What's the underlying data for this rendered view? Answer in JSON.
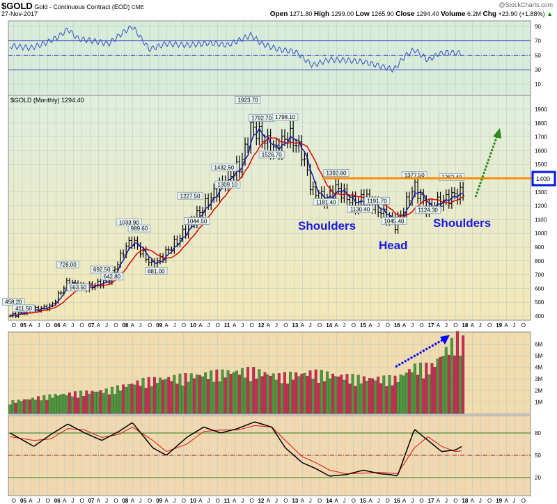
{
  "header": {
    "symbol": "$GOLD",
    "name": "Gold - Continuous Contract (EOD)",
    "exchange": "CME",
    "date": "27-Nov-2017",
    "brand": "@StockCharts.com",
    "open_label": "Open",
    "open": "1271.80",
    "high_label": "High",
    "high": "1299.00",
    "low_label": "Low",
    "low": "1265.90",
    "close_label": "Close",
    "close": "1294.40",
    "volume_label": "Volume",
    "volume": "6.2M",
    "chg_label": "Chg",
    "chg": "+23.90 (+1.88%)"
  },
  "colors": {
    "price_bg_top": "#dfeee0",
    "price_bg_bottom": "#f3e8b8",
    "rsi_bg": "#d8ecdc",
    "vol_bg": "#f0dcae",
    "stoch_bg": "#f0d8b0",
    "ma_fast": "#1a1aa0",
    "ma_slow": "#e00000",
    "resistance": "#ff8c00",
    "arrow": "#2a8a1a",
    "vol_arrow": "#0000ff",
    "up": "#4a9a3a",
    "down": "#d02850"
  },
  "chart_data": [
    {
      "type": "line",
      "title": "RSI",
      "yticks": [
        90,
        70,
        50,
        30,
        10
      ],
      "ylim": [
        0,
        100
      ],
      "x": [
        2004.6,
        2005.2,
        2005.6,
        2006.0,
        2006.3,
        2006.6,
        2007.0,
        2007.5,
        2008.0,
        2008.2,
        2008.7,
        2009.2,
        2009.8,
        2010.5,
        2011.0,
        2011.7,
        2012.0,
        2012.5,
        2013.0,
        2013.5,
        2014.0,
        2014.5,
        2015.0,
        2015.5,
        2015.9,
        2016.2,
        2016.5,
        2016.9,
        2017.2,
        2017.5,
        2017.9
      ],
      "values": [
        63,
        60,
        66,
        75,
        86,
        73,
        70,
        66,
        84,
        90,
        58,
        66,
        64,
        67,
        64,
        78,
        66,
        58,
        55,
        36,
        44,
        43,
        41,
        35,
        30,
        48,
        58,
        43,
        52,
        54,
        53
      ]
    },
    {
      "type": "bar",
      "title": "$GOLD (Monthly)",
      "last": "1294.40",
      "ylim": [
        300,
        1950
      ],
      "yticks": [
        1900,
        1800,
        1700,
        1600,
        1500,
        1400,
        1300,
        1200,
        1100,
        1000,
        900,
        800,
        700,
        600,
        500,
        400
      ],
      "anchors_x": [
        2004.6,
        2005.0,
        2005.8,
        2006.3,
        2006.8,
        2007.5,
        2008.0,
        2008.2,
        2008.8,
        2009.5,
        2010.0,
        2010.9,
        2011.4,
        2011.7,
        2012.0,
        2012.4,
        2012.8,
        2013.2,
        2013.5,
        2013.9,
        2014.2,
        2014.8,
        2015.0,
        2015.3,
        2015.8,
        2015.95,
        2016.5,
        2016.9,
        2017.0,
        2017.7,
        2017.9
      ],
      "anchors_y": [
        400,
        430,
        470,
        650,
        600,
        660,
        900,
        950,
        760,
        940,
        1100,
        1380,
        1500,
        1780,
        1700,
        1600,
        1720,
        1580,
        1300,
        1240,
        1330,
        1200,
        1280,
        1200,
        1100,
        1060,
        1340,
        1170,
        1200,
        1280,
        1294
      ],
      "labels": [
        {
          "t": "458.20",
          "x": 2004.7,
          "y": 458
        },
        {
          "t": "411.50",
          "x": 2005.0,
          "y": 411
        },
        {
          "t": "728.00",
          "x": 2006.3,
          "y": 728
        },
        {
          "t": "563.50",
          "x": 2006.6,
          "y": 563
        },
        {
          "t": "692.50",
          "x": 2007.3,
          "y": 692
        },
        {
          "t": "642.80",
          "x": 2007.6,
          "y": 642
        },
        {
          "t": "1033.90",
          "x": 2008.1,
          "y": 1034
        },
        {
          "t": "989.60",
          "x": 2008.4,
          "y": 990
        },
        {
          "t": "681.00",
          "x": 2008.9,
          "y": 681
        },
        {
          "t": "1227.50",
          "x": 2009.9,
          "y": 1227
        },
        {
          "t": "1044.50",
          "x": 2010.1,
          "y": 1044
        },
        {
          "t": "1432.50",
          "x": 2010.9,
          "y": 1432
        },
        {
          "t": "1309.10",
          "x": 2011.0,
          "y": 1309
        },
        {
          "t": "1923.70",
          "x": 2011.6,
          "y": 1923
        },
        {
          "t": "1792.70",
          "x": 2012.0,
          "y": 1792
        },
        {
          "t": "1526.70",
          "x": 2012.3,
          "y": 1526
        },
        {
          "t": "1798.10",
          "x": 2012.7,
          "y": 1798
        },
        {
          "t": "1392.60",
          "x": 2014.2,
          "y": 1392
        },
        {
          "t": "1181.40",
          "x": 2013.9,
          "y": 1181
        },
        {
          "t": "1130.40",
          "x": 2014.9,
          "y": 1130
        },
        {
          "t": "1191.70",
          "x": 2015.4,
          "y": 1191
        },
        {
          "t": "1045.40",
          "x": 2015.9,
          "y": 1045
        },
        {
          "t": "1377.50",
          "x": 2016.5,
          "y": 1377
        },
        {
          "t": "1124.30",
          "x": 2016.9,
          "y": 1124
        },
        {
          "t": "1362.40",
          "x": 2017.6,
          "y": 1362
        }
      ],
      "annotations": [
        "Shoulders",
        "Head",
        "Shoulders"
      ],
      "resistance": 1400,
      "resistance_label": "1400"
    },
    {
      "type": "bar",
      "title": "Volume",
      "yticks": [
        "6M",
        "5M",
        "4M",
        "3M",
        "2M",
        "1M"
      ],
      "ylim": [
        0,
        7
      ],
      "anchors_x": [
        2004.6,
        2006.0,
        2007.5,
        2008.5,
        2010.5,
        2011.7,
        2012.5,
        2013.5,
        2015.0,
        2016.0,
        2016.5,
        2017.0,
        2017.75,
        2017.9
      ],
      "anchors_y": [
        1.0,
        1.6,
        2.0,
        2.8,
        3.4,
        3.7,
        3.2,
        3.5,
        3.0,
        3.0,
        4.0,
        4.0,
        6.5,
        6.2
      ]
    },
    {
      "type": "line",
      "title": "Stochastic",
      "yticks": [
        80,
        50,
        20
      ],
      "ylim": [
        0,
        100
      ],
      "x": [
        2004.6,
        2005.3,
        2005.8,
        2006.3,
        2006.8,
        2007.3,
        2007.8,
        2008.2,
        2008.8,
        2009.2,
        2009.8,
        2010.3,
        2010.8,
        2011.3,
        2011.8,
        2012.3,
        2012.7,
        2013.2,
        2013.6,
        2014.0,
        2014.5,
        2015.0,
        2015.5,
        2015.8,
        2016.0,
        2016.5,
        2016.9,
        2017.3,
        2017.7,
        2017.9
      ],
      "k": [
        80,
        62,
        78,
        92,
        80,
        70,
        82,
        94,
        60,
        50,
        74,
        88,
        80,
        86,
        95,
        88,
        60,
        40,
        32,
        22,
        24,
        30,
        25,
        24,
        22,
        85,
        70,
        55,
        57,
        62
      ],
      "d": [
        75,
        70,
        72,
        86,
        84,
        74,
        78,
        88,
        70,
        55,
        65,
        82,
        84,
        84,
        90,
        88,
        70,
        48,
        40,
        30,
        25,
        26,
        27,
        26,
        25,
        60,
        75,
        62,
        55,
        56
      ],
      "xtick_years": [
        "05",
        "06",
        "07",
        "08",
        "09",
        "10",
        "11",
        "12",
        "13",
        "14",
        "15",
        "16",
        "17",
        "18",
        "19"
      ]
    }
  ]
}
